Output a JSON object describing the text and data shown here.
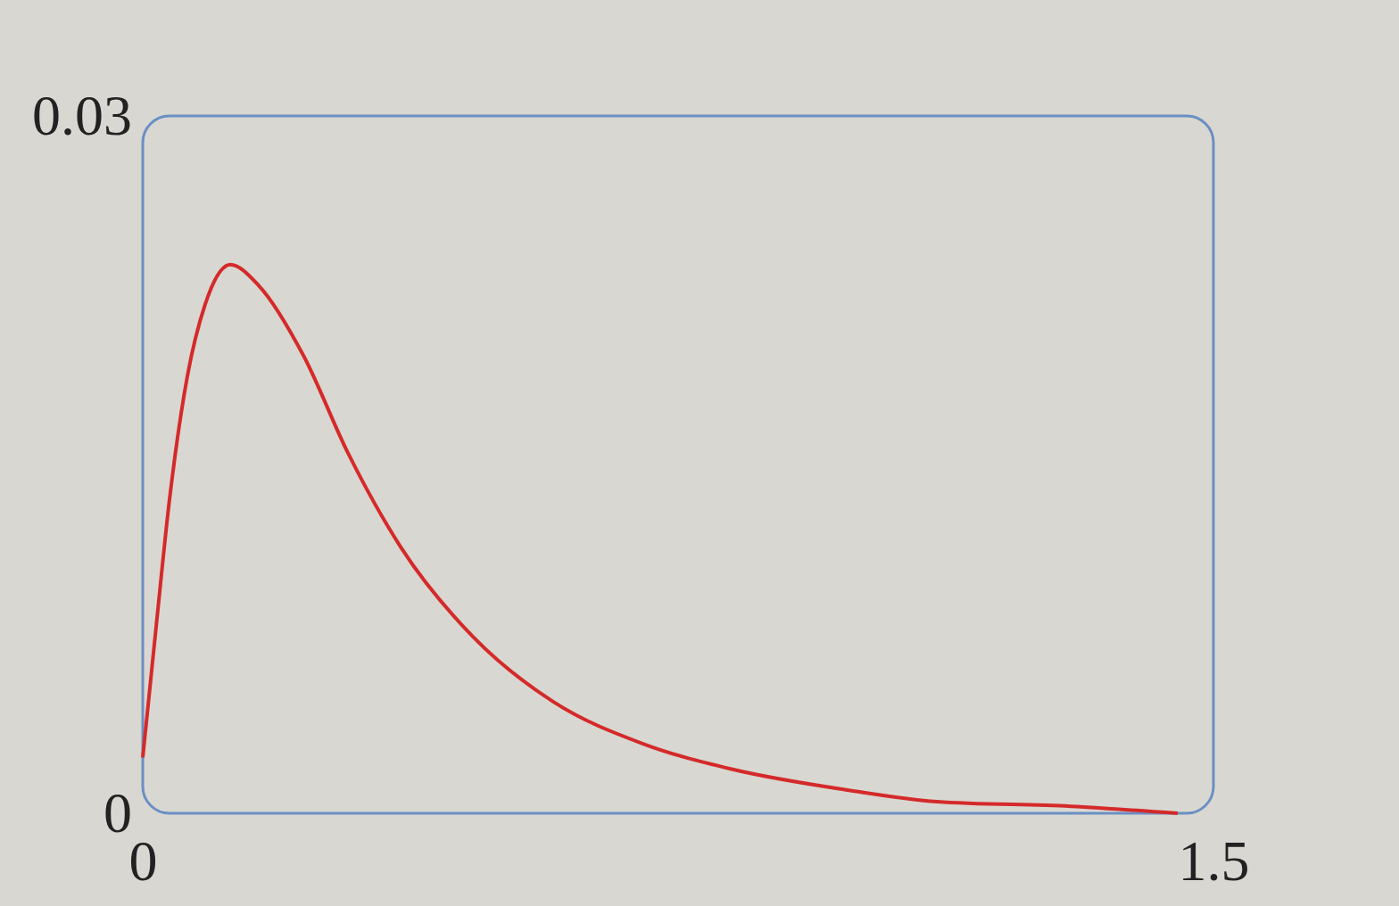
{
  "chart_data": {
    "type": "line",
    "xlim": [
      0,
      1.5
    ],
    "ylim": [
      0,
      0.03
    ],
    "xticks": [
      0,
      1.5
    ],
    "yticks": [
      0,
      0.03
    ],
    "series": [
      {
        "color": "#d42a2a",
        "x": [
          0,
          0.019,
          0.0375,
          0.0625,
          0.0875,
          0.1225,
          0.1625,
          0.225,
          0.2875,
          0.3625,
          0.4625,
          0.575,
          0.7,
          0.825,
          0.9875,
          1.1125,
          1.3,
          1.45
        ],
        "values": [
          0.0024,
          0.0081,
          0.0135,
          0.0188,
          0.0219,
          0.0236,
          0.0227,
          0.0197,
          0.0155,
          0.0114,
          0.0076,
          0.0048,
          0.003,
          0.0019,
          0.001,
          0.0005,
          0.0003,
          0
        ]
      }
    ],
    "grid": false,
    "marker": "none",
    "line_style": "solid"
  }
}
